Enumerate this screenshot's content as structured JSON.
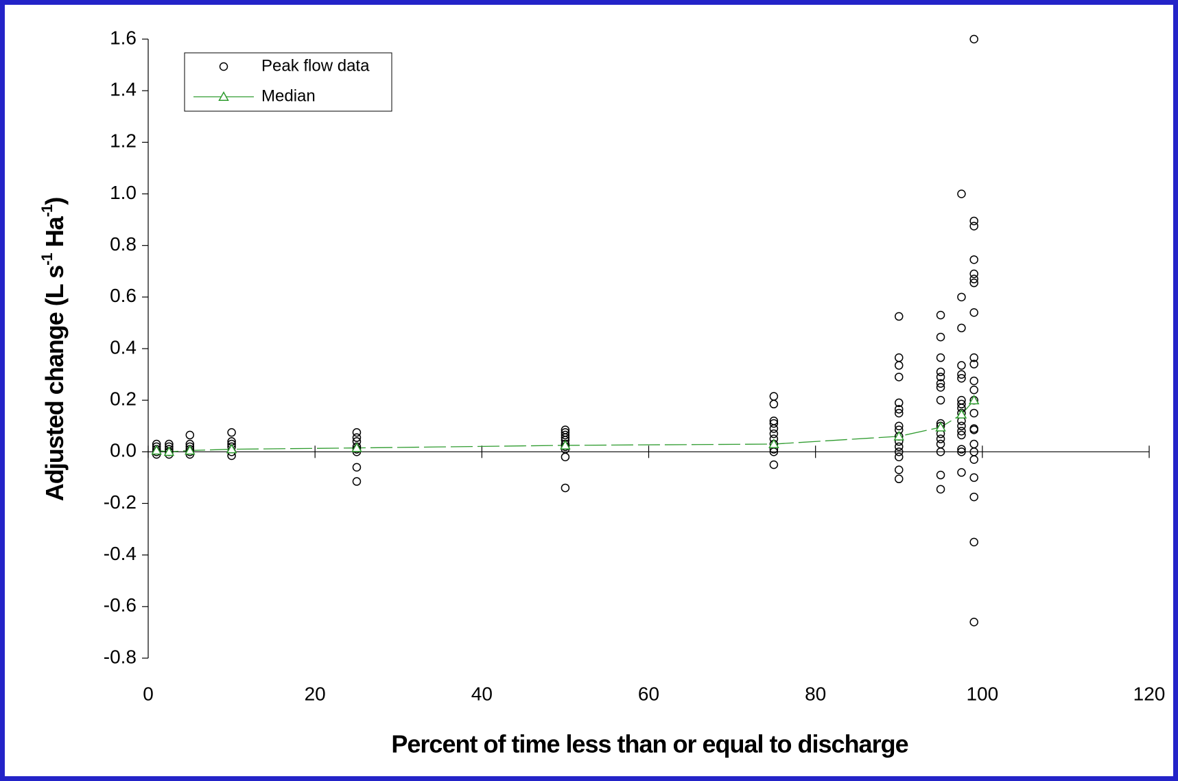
{
  "chart_data": {
    "type": "scatter",
    "x_label": "Percent of time less than or equal to discharge",
    "y_label": [
      "Adjusted change (L s",
      "-1",
      " Ha",
      "-1",
      ")"
    ],
    "xlim": [
      0,
      120
    ],
    "xticks": [
      0,
      20,
      40,
      60,
      80,
      100,
      120
    ],
    "ylim": [
      -0.8,
      1.6
    ],
    "yticks": [
      -0.8,
      -0.6,
      -0.4,
      -0.2,
      {
        "value": 0,
        "label": "0.0"
      },
      0.2,
      0.4,
      0.6,
      0.8,
      {
        "value": 1,
        "label": "1.0"
      },
      1.2,
      1.4,
      1.6
    ],
    "series": [
      {
        "name": "Peak flow data",
        "color": "#000000",
        "x": [
          1,
          1,
          1,
          1,
          1,
          2.5,
          2.5,
          2.5,
          2.5,
          2.5,
          5,
          5,
          5,
          5,
          5,
          5,
          10,
          10,
          10,
          10,
          10,
          10,
          25,
          25,
          25,
          25,
          25,
          25,
          25,
          25,
          50,
          50,
          50,
          50,
          50,
          50,
          50,
          50,
          50,
          50,
          75,
          75,
          75,
          75,
          75,
          75,
          75,
          75,
          75,
          75,
          75,
          90,
          90,
          90,
          90,
          90,
          90,
          90,
          90,
          90,
          90,
          90,
          90,
          90,
          90,
          90,
          90,
          95,
          95,
          95,
          95,
          95,
          95,
          95,
          95,
          95,
          95,
          95,
          95,
          95,
          95,
          95,
          95,
          97.5,
          97.5,
          97.5,
          97.5,
          97.5,
          97.5,
          97.5,
          97.5,
          97.5,
          97.5,
          97.5,
          97.5,
          97.5,
          97.5,
          97.5,
          97.5,
          97.5,
          99,
          99,
          99,
          99,
          99,
          99,
          99,
          99,
          99,
          99,
          99,
          99,
          99,
          99,
          99,
          99,
          99,
          99,
          99,
          99,
          99,
          99,
          99
        ],
        "values": [
          0.03,
          0.02,
          0.01,
          0,
          -0.01,
          0.03,
          0.02,
          0.01,
          0,
          -0.01,
          0.065,
          0.03,
          0.02,
          0.01,
          0,
          -0.01,
          0.075,
          0.04,
          0.03,
          0.02,
          0,
          -0.015,
          0.075,
          0.055,
          0.04,
          0.02,
          0.01,
          0,
          -0.06,
          -0.115,
          0.085,
          0.075,
          0.065,
          0.055,
          0.045,
          0.03,
          0.02,
          0.01,
          -0.02,
          -0.14,
          0.215,
          0.185,
          0.12,
          0.11,
          0.09,
          0.07,
          0.05,
          0.03,
          0.01,
          0,
          -0.05,
          0.525,
          0.365,
          0.335,
          0.29,
          0.19,
          0.165,
          0.15,
          0.1,
          0.085,
          0.06,
          0.04,
          0.02,
          0,
          -0.02,
          -0.07,
          -0.105,
          0.53,
          0.445,
          0.365,
          0.31,
          0.29,
          0.265,
          0.25,
          0.2,
          0.11,
          0.1,
          0.07,
          0.05,
          0.03,
          0,
          -0.09,
          -0.145,
          1.0,
          0.6,
          0.48,
          0.335,
          0.3,
          0.285,
          0.2,
          0.185,
          0.17,
          0.15,
          0.12,
          0.1,
          0.08,
          0.065,
          0.01,
          0,
          -0.08,
          1.6,
          0.895,
          0.875,
          0.745,
          0.69,
          0.67,
          0.655,
          0.54,
          0.365,
          0.34,
          0.275,
          0.24,
          0.2,
          0.15,
          0.09,
          0.085,
          0.03,
          0,
          -0.03,
          -0.1,
          -0.175,
          -0.35,
          -0.66
        ]
      },
      {
        "name": "Median",
        "color": "#2e9b2e",
        "x": [
          1,
          2.5,
          5,
          10,
          25,
          50,
          75,
          90,
          95,
          97.5,
          99
        ],
        "values": [
          0.005,
          0,
          0.005,
          0.01,
          0.015,
          0.025,
          0.03,
          0.06,
          0.095,
          0.145,
          0.2
        ]
      }
    ]
  }
}
